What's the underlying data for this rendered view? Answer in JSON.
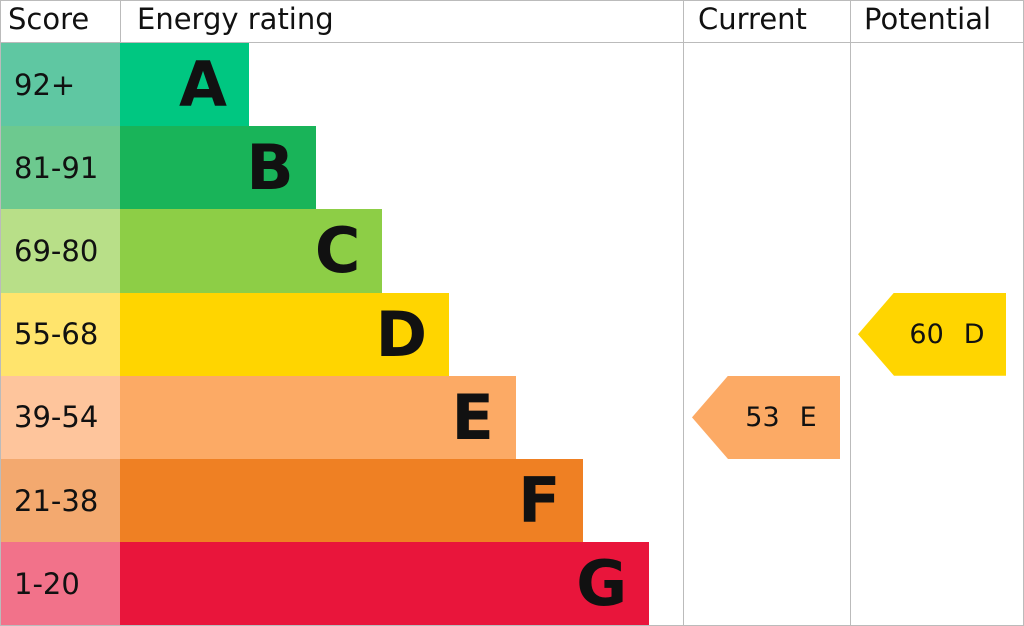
{
  "headers": {
    "score": "Score",
    "rating": "Energy rating",
    "current": "Current",
    "potential": "Potential"
  },
  "colors": {
    "border": "#bbbbbb"
  },
  "chart_data": {
    "type": "bar",
    "bands": [
      {
        "score": "92+",
        "letter": "A",
        "color": "#00c781",
        "light": "#5fc7a2"
      },
      {
        "score": "81-91",
        "letter": "B",
        "color": "#19b459",
        "light": "#6dc98f"
      },
      {
        "score": "69-80",
        "letter": "C",
        "color": "#8dce46",
        "light": "#b8df88"
      },
      {
        "score": "55-68",
        "letter": "D",
        "color": "#ffd500",
        "light": "#ffe46c"
      },
      {
        "score": "39-54",
        "letter": "E",
        "color": "#fcaa65",
        "light": "#fec59c"
      },
      {
        "score": "21-38",
        "letter": "F",
        "color": "#ef8023",
        "light": "#f3a96f"
      },
      {
        "score": "1-20",
        "letter": "G",
        "color": "#e9153b",
        "light": "#f2728a"
      }
    ],
    "current": {
      "value": "53",
      "letter": "E",
      "color": "#fcaa65"
    },
    "potential": {
      "value": "60",
      "letter": "D",
      "color": "#ffd500"
    }
  }
}
